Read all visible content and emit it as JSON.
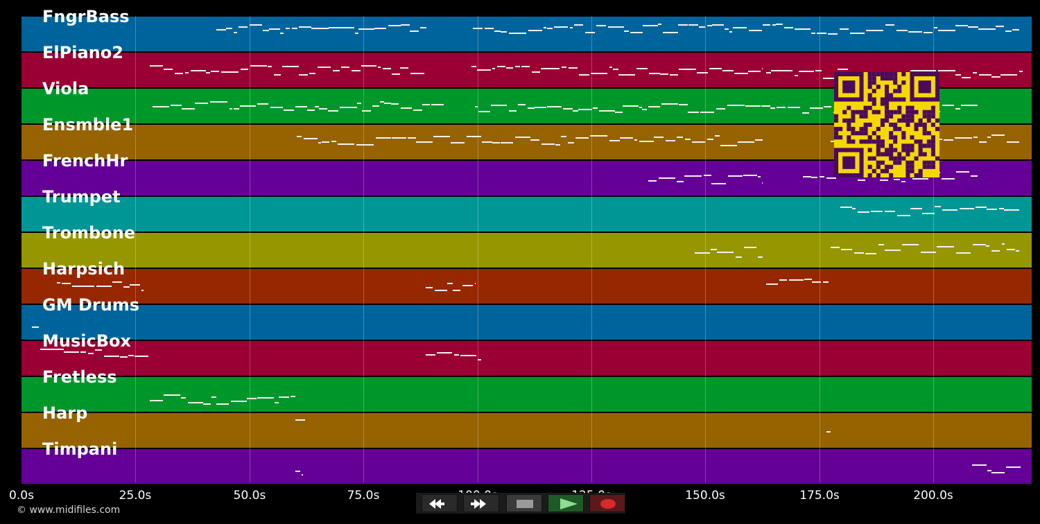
{
  "tracks": [
    {
      "name": "FngrBass",
      "color": "#00649c"
    },
    {
      "name": "ElPiano2",
      "color": "#9a0033"
    },
    {
      "name": "Viola",
      "color": "#00972a"
    },
    {
      "name": "Ensmble1",
      "color": "#966300"
    },
    {
      "name": "FrenchHr",
      "color": "#640096"
    },
    {
      "name": "Trumpet",
      "color": "#009696"
    },
    {
      "name": "Trombone",
      "color": "#969600"
    },
    {
      "name": "Harpsich",
      "color": "#962800"
    },
    {
      "name": "GM Drums",
      "color": "#00649c"
    },
    {
      "name": "MusicBox",
      "color": "#9a0033"
    },
    {
      "name": "Fretless",
      "color": "#00972a"
    },
    {
      "name": "Harp",
      "color": "#966300"
    },
    {
      "name": "Timpani",
      "color": "#640096"
    }
  ],
  "axis": {
    "ticks": [
      "0.0s",
      "25.0s",
      "50.0s",
      "75.0s",
      "100.0s",
      "125.0s",
      "150.0s",
      "175.0s",
      "200.0s"
    ]
  },
  "copyright": "© www.midifiles.com",
  "transport": {
    "buttons": [
      {
        "name": "rewind",
        "icon": "rewind-icon"
      },
      {
        "name": "fast-forward",
        "icon": "fast-forward-icon"
      },
      {
        "name": "stop",
        "icon": "stop-icon"
      },
      {
        "name": "play",
        "icon": "play-icon"
      },
      {
        "name": "record",
        "icon": "record-icon"
      }
    ]
  },
  "qr_code": {
    "color": "#f5d800",
    "module_color": "#4b0a5a"
  }
}
